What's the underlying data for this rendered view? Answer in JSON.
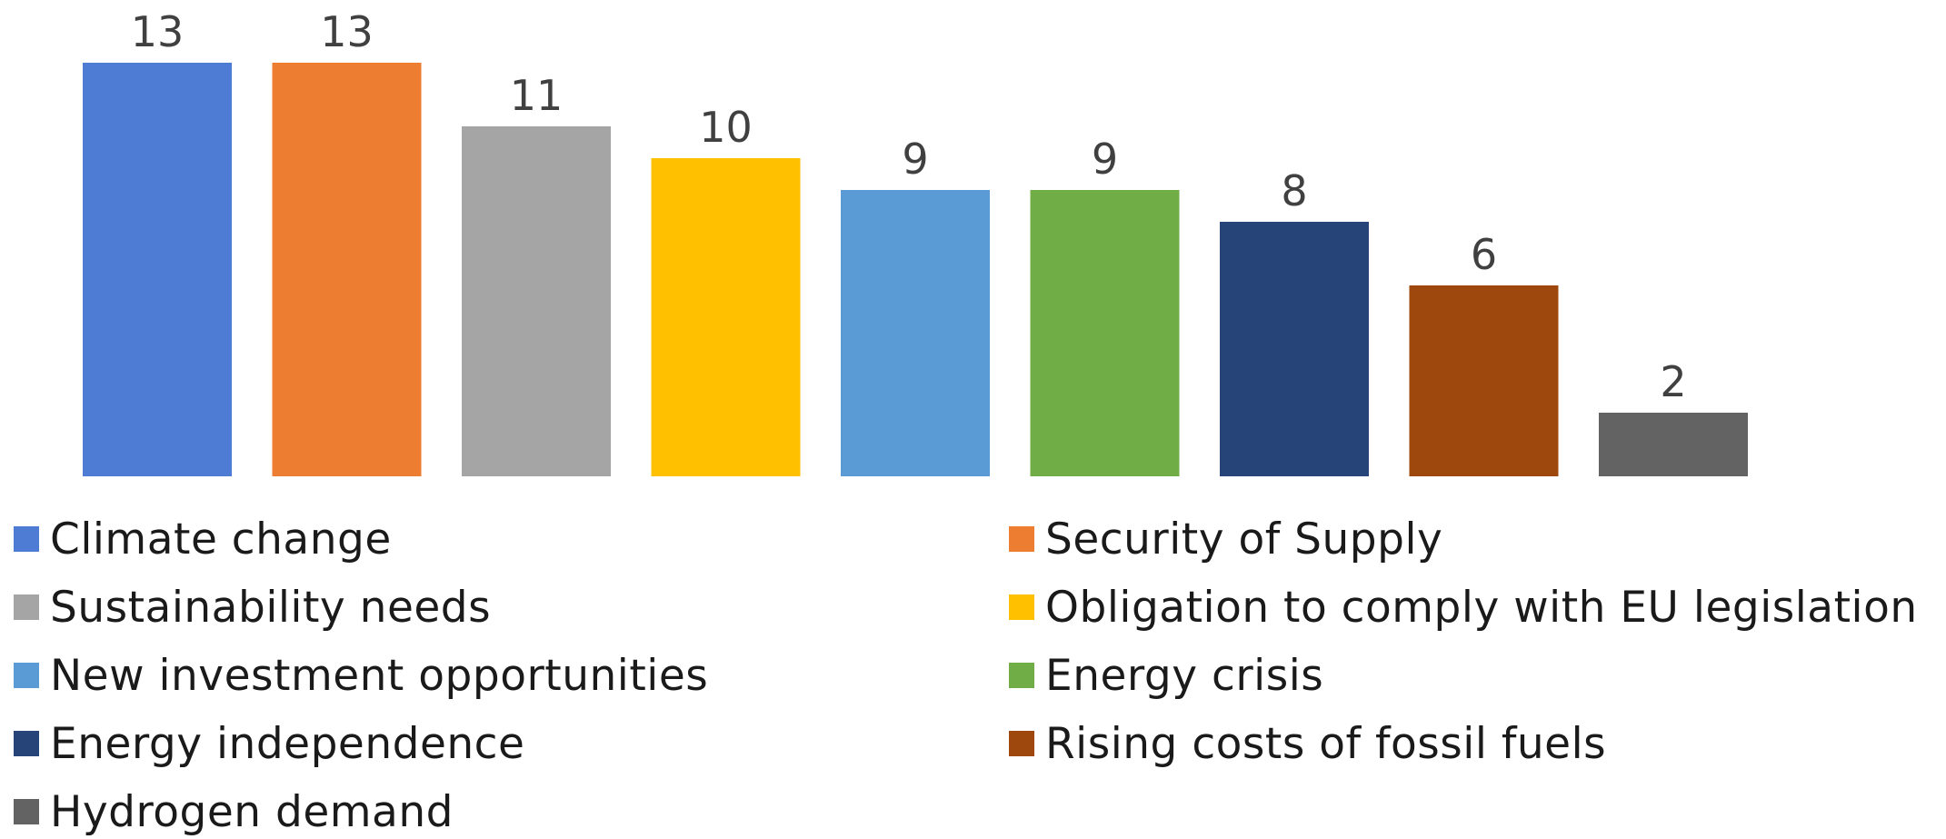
{
  "chart_data": {
    "type": "bar",
    "title": "",
    "xlabel": "",
    "ylabel": "",
    "ylim": [
      0,
      13
    ],
    "grid": false,
    "legend_position": "bottom",
    "categories": [
      "Climate change",
      "Security of Supply",
      "Sustainability needs",
      "Obligation to comply with EU legislation",
      "New investment opportunities",
      "Energy crisis",
      "Energy independence",
      "Rising costs of fossil fuels",
      "Hydrogen demand"
    ],
    "values": [
      13,
      13,
      11,
      10,
      9,
      9,
      8,
      6,
      2
    ],
    "colors": [
      "#4e7bd4",
      "#ed7d31",
      "#a5a5a5",
      "#ffc000",
      "#5b9bd5",
      "#70ad47",
      "#264478",
      "#9e480e",
      "#636363"
    ],
    "data_labels": [
      "13",
      "13",
      "11",
      "10",
      "9",
      "9",
      "8",
      "6",
      "2"
    ]
  }
}
